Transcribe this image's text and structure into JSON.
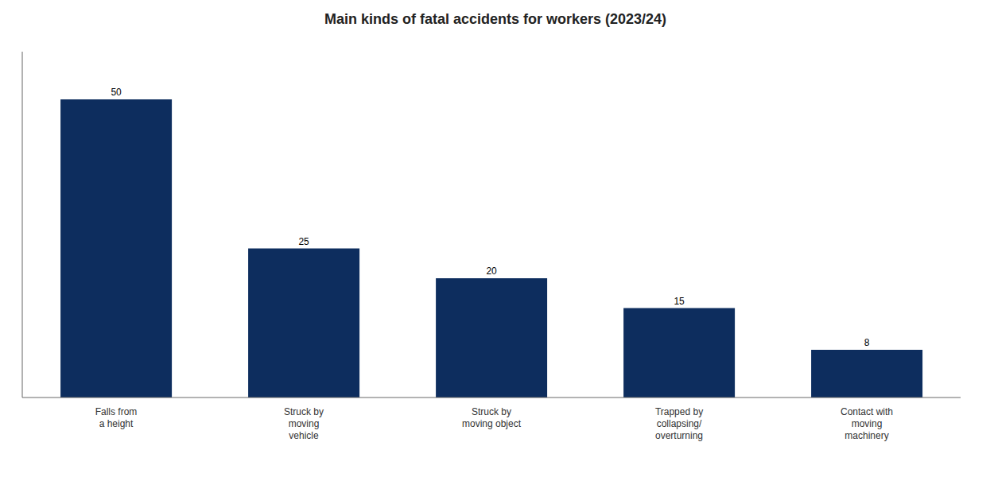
{
  "chart_data": {
    "type": "bar",
    "title": "Main kinds of fatal accidents for workers (2023/24)",
    "categories": [
      "Falls from\na height",
      "Struck by\nmoving\nvehicle",
      "Struck by\nmoving object",
      "Trapped by\ncollapsing/\noverturning",
      "Contact with\nmoving\nmachinery"
    ],
    "values": [
      50,
      25,
      20,
      15,
      8
    ],
    "color": "#0d2d5e",
    "ylim": [
      0,
      58
    ],
    "data_labels": true,
    "tick_labels": "x"
  }
}
